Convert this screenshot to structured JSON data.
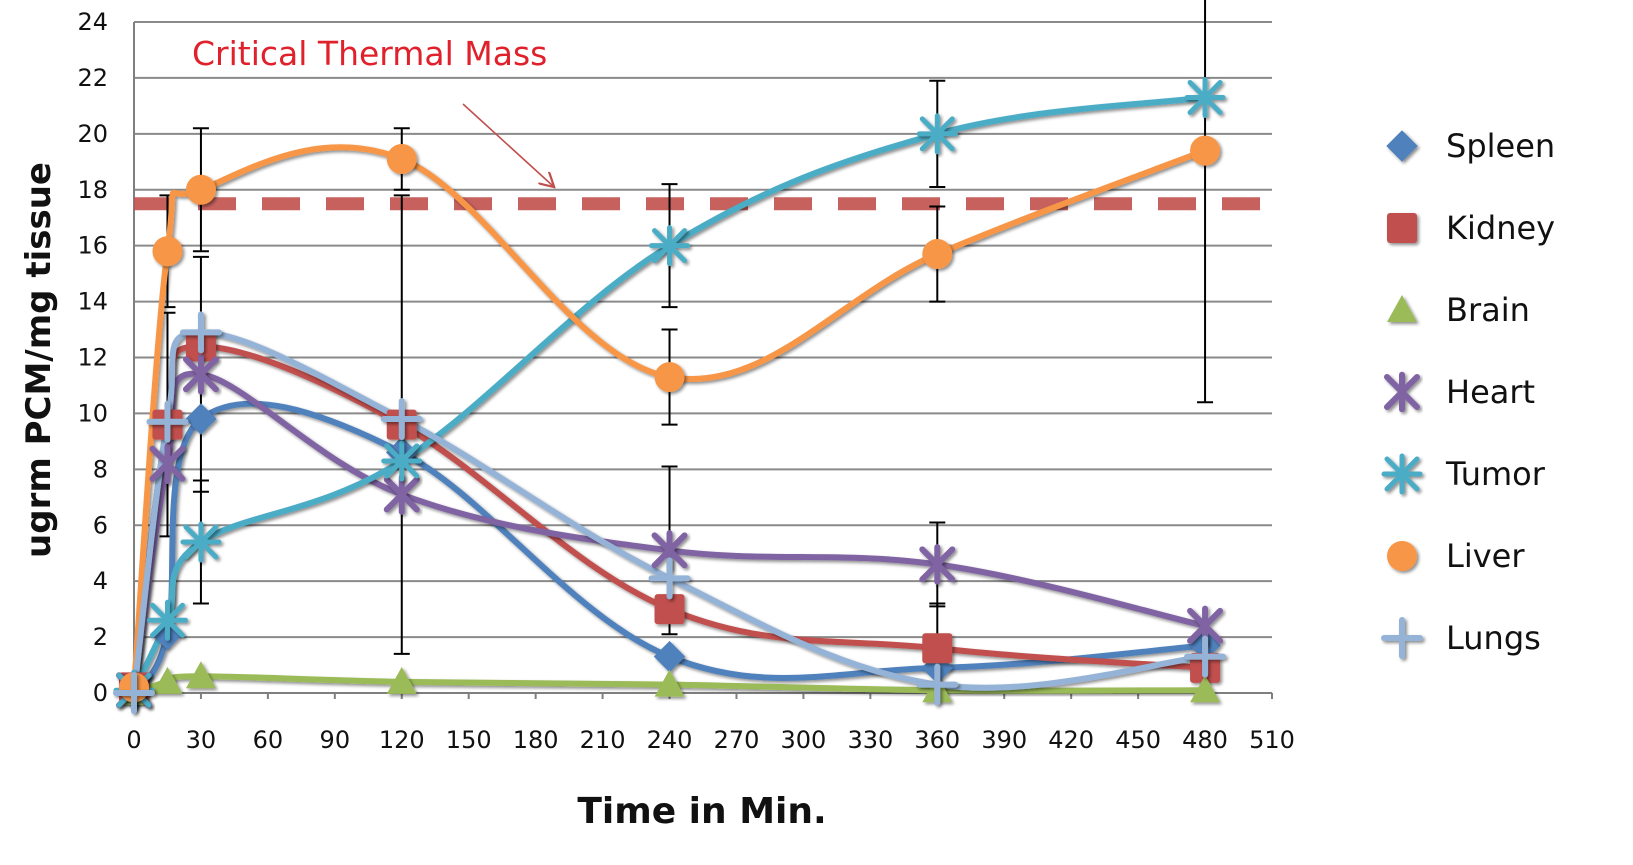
{
  "chart_data": {
    "type": "line",
    "title": "",
    "xlabel": "Time in Min.",
    "ylabel": "ugrm PCM/mg tissue",
    "xlim": [
      0,
      510
    ],
    "ylim": [
      0,
      24
    ],
    "x_ticks": [
      0,
      30,
      60,
      90,
      120,
      150,
      180,
      210,
      240,
      270,
      300,
      330,
      360,
      390,
      420,
      450,
      480,
      510
    ],
    "y_ticks": [
      0,
      2,
      4,
      6,
      8,
      10,
      12,
      14,
      16,
      18,
      20,
      22,
      24
    ],
    "grid": "horizontal",
    "legend": "right",
    "annotation": {
      "text": "Critical Thermal Mass",
      "value": 17.5,
      "color": "#c0504d"
    },
    "series": [
      {
        "name": "Spleen",
        "color": "#4f81bd",
        "marker": "diamond",
        "x": [
          0,
          15,
          30,
          120,
          240,
          360,
          480
        ],
        "y": [
          0,
          2.1,
          9.8,
          8.6,
          1.3,
          0.9,
          1.7
        ],
        "err": [
          0,
          0,
          0,
          0,
          0,
          0,
          0
        ]
      },
      {
        "name": "Kidney",
        "color": "#c0504d",
        "marker": "square",
        "x": [
          0,
          15,
          30,
          120,
          240,
          360,
          480
        ],
        "y": [
          0.2,
          9.6,
          12.4,
          9.6,
          3.0,
          1.6,
          0.9
        ],
        "err": [
          0,
          4.0,
          0,
          8.2,
          0,
          1.6,
          0
        ]
      },
      {
        "name": "Brain",
        "color": "#9bbb59",
        "marker": "triangle",
        "x": [
          0,
          15,
          30,
          120,
          240,
          360,
          480
        ],
        "y": [
          0,
          0.4,
          0.6,
          0.4,
          0.3,
          0.1,
          0.1
        ],
        "err": [
          0,
          0,
          0,
          0,
          0,
          0,
          0
        ]
      },
      {
        "name": "Heart",
        "color": "#8064a2",
        "marker": "star",
        "x": [
          0,
          15,
          30,
          120,
          240,
          360,
          480
        ],
        "y": [
          0.1,
          8.2,
          11.4,
          7.1,
          5.1,
          4.6,
          2.4
        ],
        "err": [
          0,
          0,
          4.2,
          0,
          3.0,
          1.5,
          0
        ]
      },
      {
        "name": "Tumor",
        "color": "#4bacc6",
        "marker": "asterisk",
        "x": [
          0,
          15,
          30,
          120,
          240,
          360,
          480
        ],
        "y": [
          0.1,
          2.6,
          5.4,
          8.3,
          16.0,
          20.0,
          21.3
        ],
        "err": [
          0,
          0,
          2.2,
          0,
          2.2,
          1.9,
          0
        ]
      },
      {
        "name": "Liver",
        "color": "#f79646",
        "marker": "circle",
        "x": [
          0,
          15,
          30,
          120,
          240,
          360,
          480
        ],
        "y": [
          0.2,
          15.8,
          18.0,
          19.1,
          11.3,
          15.7,
          19.4
        ],
        "err": [
          0,
          2.0,
          2.2,
          1.1,
          1.7,
          1.7,
          9.0
        ]
      },
      {
        "name": "Lungs",
        "color": "#95b3d7",
        "marker": "plus",
        "x": [
          0,
          15,
          30,
          120,
          240,
          360,
          480
        ],
        "y": [
          0,
          9.7,
          12.9,
          9.8,
          4.1,
          0.3,
          1.3
        ],
        "err": [
          0,
          0,
          0,
          0,
          0,
          0,
          0
        ]
      }
    ]
  }
}
